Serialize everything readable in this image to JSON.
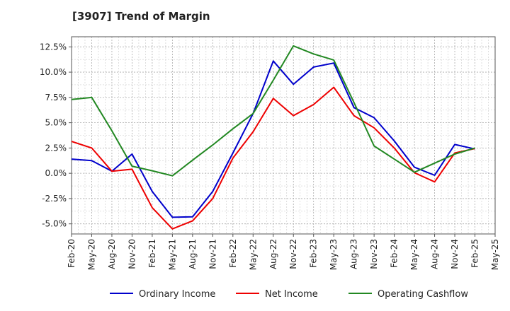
{
  "chart_data": {
    "type": "line",
    "title": "[3907]  Trend of Margin",
    "x": [
      "Feb-20",
      "May-20",
      "Aug-20",
      "Nov-20",
      "Feb-21",
      "May-21",
      "Aug-21",
      "Nov-21",
      "Feb-22",
      "May-22",
      "Aug-22",
      "Nov-22",
      "Feb-23",
      "May-23",
      "Aug-23",
      "Nov-23",
      "Feb-24",
      "May-24",
      "Aug-24",
      "Nov-24",
      "Feb-25",
      "May-25"
    ],
    "y_ticks": [
      "-5.0%",
      "-2.5%",
      "0.0%",
      "2.5%",
      "5.0%",
      "7.5%",
      "10.0%",
      "12.5%"
    ],
    "y_tick_values": [
      -5,
      -2.5,
      0,
      2.5,
      5,
      7.5,
      10,
      12.5
    ],
    "ylim": [
      -6,
      13.5
    ],
    "grid": true,
    "legend_position": "bottom",
    "series": [
      {
        "name": "Ordinary Income",
        "color": "#0000cc",
        "values": [
          1.4,
          1.25,
          0.2,
          1.9,
          -1.8,
          -4.35,
          -4.3,
          -1.8,
          2.0,
          5.9,
          11.1,
          8.8,
          10.5,
          10.9,
          6.5,
          5.5,
          3.2,
          0.6,
          -0.2,
          2.85,
          2.4,
          null
        ]
      },
      {
        "name": "Net Income",
        "color": "#ee0000",
        "values": [
          3.15,
          2.5,
          0.2,
          0.4,
          -3.4,
          -5.5,
          -4.7,
          -2.5,
          1.5,
          4.1,
          7.4,
          5.7,
          6.8,
          8.5,
          5.7,
          4.5,
          2.5,
          0.05,
          -0.85,
          2.0,
          2.45,
          null
        ]
      },
      {
        "name": "Operating Cashflow",
        "color": "#228822",
        "values": [
          7.3,
          7.5,
          4.2,
          0.7,
          0.25,
          -0.25,
          1.3,
          2.8,
          4.4,
          5.9,
          9.2,
          12.6,
          11.8,
          11.2,
          7.0,
          2.7,
          1.4,
          0.1,
          1.0,
          1.9,
          2.5,
          null
        ]
      }
    ]
  }
}
